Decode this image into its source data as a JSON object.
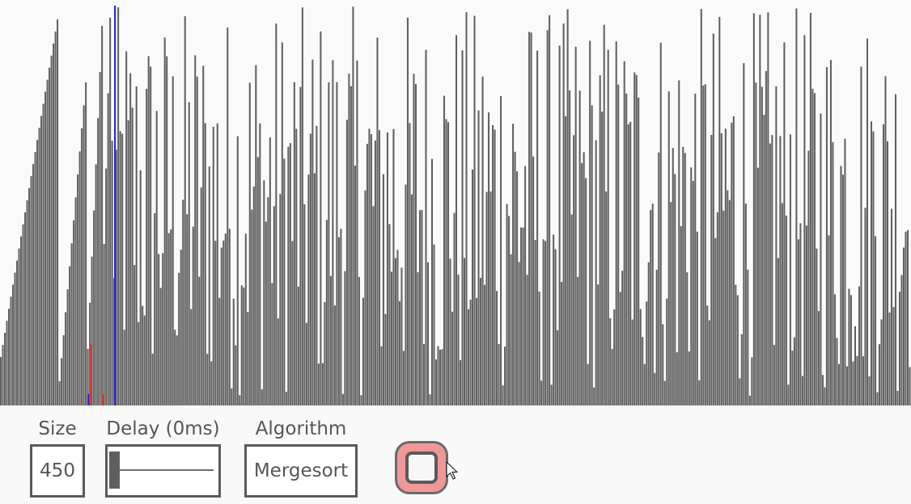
{
  "visualizer": {
    "bar_color": "#606060",
    "background_color": "#fafafa",
    "compare_color": "#2b2bd6",
    "swap_color": "#d63a3a"
  },
  "controls": {
    "size": {
      "label": "Size",
      "value": "450"
    },
    "delay": {
      "label": "Delay (0ms)",
      "value": 0
    },
    "algorithm": {
      "label": "Algorithm",
      "value": "Mergesort"
    },
    "run_button": {
      "icon": "stop-icon",
      "color": "#f09898"
    }
  }
}
